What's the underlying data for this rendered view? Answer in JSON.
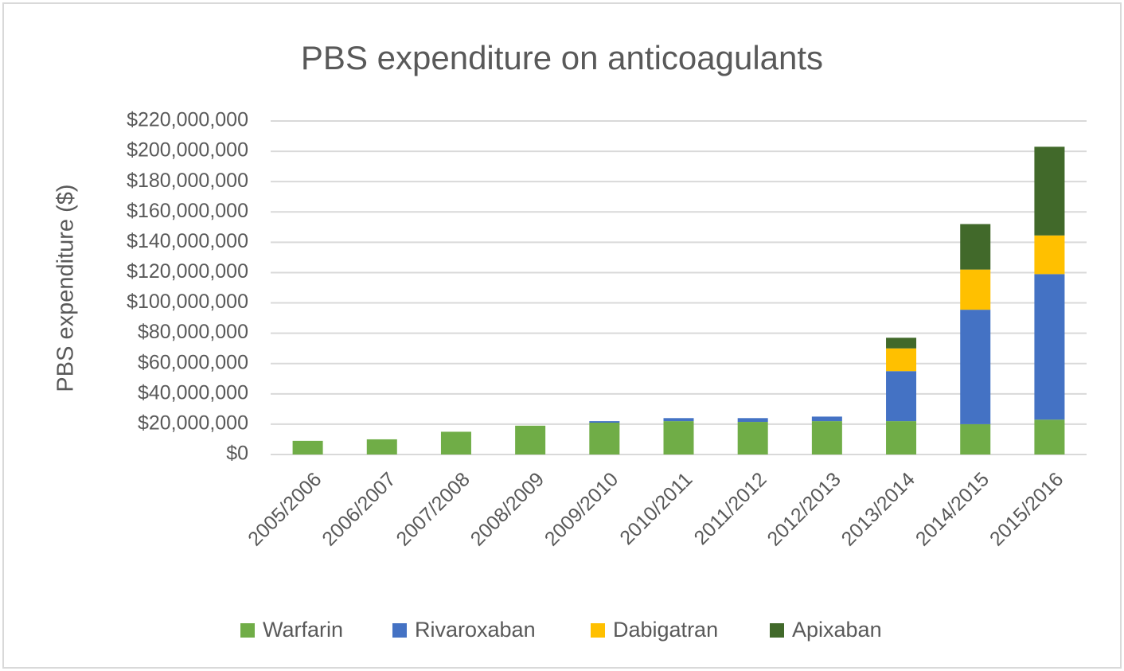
{
  "chart_data": {
    "type": "stacked_bar",
    "title": "PBS expenditure on anticoagulants",
    "y_label": "PBS expenditure ($)",
    "categories": [
      "2005/2006",
      "2006/2007",
      "2007/2008",
      "2008/2009",
      "2009/2010",
      "2010/2011",
      "2011/2012",
      "2012/2013",
      "2013/2014",
      "2014/2015",
      "2015/2016"
    ],
    "series": [
      {
        "name": "Warfarin",
        "color": "#70ad47",
        "values": [
          9000000,
          10000000,
          15000000,
          19000000,
          21000000,
          22000000,
          21500000,
          22000000,
          22000000,
          20000000,
          23000000
        ]
      },
      {
        "name": "Rivaroxaban",
        "color": "#4472c4",
        "values": [
          0,
          0,
          0,
          0,
          1000000,
          2000000,
          2500000,
          3000000,
          33000000,
          75500000,
          96000000
        ]
      },
      {
        "name": "Dabigatran",
        "color": "#ffc000",
        "values": [
          0,
          0,
          0,
          0,
          0,
          0,
          0,
          0,
          15000000,
          26500000,
          25500000
        ]
      },
      {
        "name": "Apixaban",
        "color": "#41692a",
        "values": [
          0,
          0,
          0,
          0,
          0,
          0,
          0,
          0,
          7000000,
          30000000,
          58500000
        ]
      }
    ],
    "ylim": [
      0,
      220000000
    ],
    "yticks": [
      {
        "value": 0,
        "label": "$0"
      },
      {
        "value": 20000000,
        "label": "$20,000,000"
      },
      {
        "value": 40000000,
        "label": "$40,000,000"
      },
      {
        "value": 60000000,
        "label": "$60,000,000"
      },
      {
        "value": 80000000,
        "label": "$80,000,000"
      },
      {
        "value": 100000000,
        "label": "$100,000,000"
      },
      {
        "value": 120000000,
        "label": "$120,000,000"
      },
      {
        "value": 140000000,
        "label": "$140,000,000"
      },
      {
        "value": 160000000,
        "label": "$160,000,000"
      },
      {
        "value": 180000000,
        "label": "$180,000,000"
      },
      {
        "value": 200000000,
        "label": "$200,000,000"
      },
      {
        "value": 220000000,
        "label": "$220,000,000"
      }
    ],
    "grid": true,
    "legend": "bottom"
  }
}
